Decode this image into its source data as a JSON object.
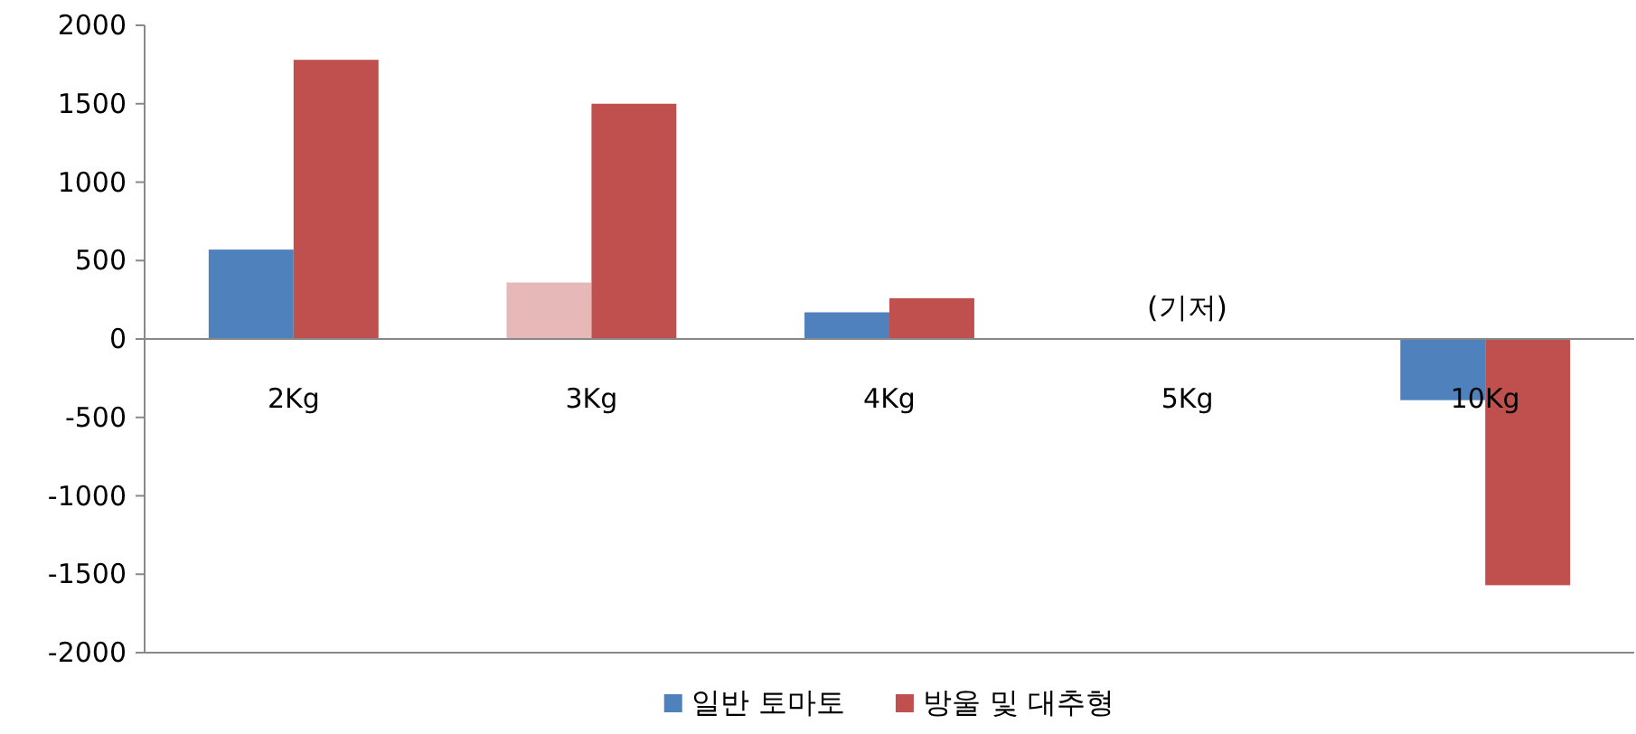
{
  "chart_data": {
    "type": "bar",
    "categories": [
      "2Kg",
      "3Kg",
      "4Kg",
      "5Kg",
      "10Kg"
    ],
    "series": [
      {
        "name": "일반 토마토",
        "color": "#4f81bd",
        "colors": [
          "#4f81bd",
          "#e6b9b8",
          "#4f81bd",
          "#4f81bd",
          "#4f81bd"
        ],
        "values": [
          570,
          360,
          170,
          0,
          -390
        ]
      },
      {
        "name": "방울 및 대추형",
        "color": "#c0504d",
        "values": [
          1780,
          1500,
          260,
          0,
          -1570
        ]
      }
    ],
    "ylim": [
      -2000,
      2000
    ],
    "yticks": [
      -2000,
      -1500,
      -1000,
      -500,
      0,
      500,
      1000,
      1500,
      2000
    ],
    "grid": false,
    "legend": "bottom",
    "annotations": [
      {
        "text": "(기저)",
        "x": "5Kg",
        "y": 0
      }
    ]
  }
}
